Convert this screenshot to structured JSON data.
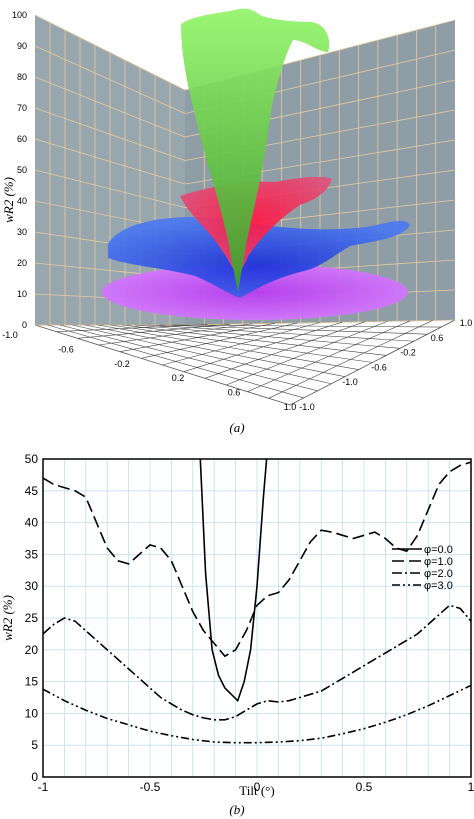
{
  "chart_data": [
    {
      "type": "surface3d",
      "panel_label": "(a)",
      "zlabel": "wR2 (%)",
      "zlim": [
        0,
        100
      ],
      "z_ticks": [
        "0",
        "10",
        "20",
        "30",
        "40",
        "50",
        "60",
        "70",
        "80",
        "90",
        "100"
      ],
      "x_ticks": [
        "-1.0",
        "-0.6",
        "-0.2",
        "0.2",
        "0.6",
        "1.0"
      ],
      "y_ticks": [
        "1.0",
        "0.6",
        "-0.2",
        "-0.6",
        "-1.0"
      ],
      "y_ticks_extra": [
        "-1.0"
      ],
      "surfaces": [
        {
          "name": "phi=0.0",
          "color": "#7ef04a",
          "min_z": 4,
          "max_z": 100
        },
        {
          "name": "phi=1.0",
          "color": "#ff2f6e",
          "min_z": 19,
          "max_z": 45
        },
        {
          "name": "phi=2.0",
          "color": "#2f4cf0",
          "min_z": 8,
          "max_z": 35
        },
        {
          "name": "phi=3.0",
          "color": "#c24cf5",
          "min_z": 5,
          "max_z": 15
        }
      ],
      "colors": {
        "wall": "#98a6ad",
        "grid": "#e8cba0",
        "floor": "#ffffff"
      }
    },
    {
      "type": "line",
      "panel_label": "(b)",
      "xlabel": "Tilt (°)",
      "ylabel": "wR2 (%)",
      "xlim": [
        -1,
        1
      ],
      "ylim": [
        0,
        50
      ],
      "x_ticks": [
        "-1",
        "-0.5",
        "0",
        "0.5",
        "1"
      ],
      "y_ticks": [
        "0",
        "5",
        "10",
        "15",
        "20",
        "25",
        "30",
        "35",
        "40",
        "45",
        "50"
      ],
      "legend_position": "right",
      "series": [
        {
          "name": "φ=0.0",
          "dash": "solid",
          "x": [
            -0.265,
            -0.24,
            -0.21,
            -0.18,
            -0.15,
            -0.12,
            -0.09,
            -0.06,
            -0.03,
            0.0,
            0.03,
            0.045
          ],
          "y": [
            50,
            32,
            20,
            16,
            14,
            13,
            12,
            15,
            20,
            30,
            44,
            50
          ]
        },
        {
          "name": "φ=1.0",
          "dash": "longdash",
          "x": [
            -1.0,
            -0.95,
            -0.9,
            -0.85,
            -0.8,
            -0.75,
            -0.7,
            -0.65,
            -0.6,
            -0.55,
            -0.5,
            -0.45,
            -0.4,
            -0.35,
            -0.3,
            -0.25,
            -0.2,
            -0.15,
            -0.1,
            -0.05,
            0.0,
            0.05,
            0.1,
            0.15,
            0.2,
            0.25,
            0.3,
            0.35,
            0.4,
            0.45,
            0.5,
            0.55,
            0.6,
            0.65,
            0.7,
            0.75,
            0.8,
            0.85,
            0.9,
            0.95,
            1.0
          ],
          "y": [
            47,
            46,
            45.5,
            45,
            44,
            40,
            36,
            34,
            33.5,
            35,
            36.5,
            36,
            34,
            30,
            26,
            23,
            21,
            19,
            20,
            23,
            27,
            28.5,
            29,
            31,
            34,
            37,
            38.8,
            38.5,
            38,
            37.5,
            38,
            38.5,
            37.5,
            36,
            35.5,
            38,
            42,
            46,
            48,
            49,
            49.5
          ]
        },
        {
          "name": "φ=2.0",
          "dash": "dashdot",
          "x": [
            -1.0,
            -0.95,
            -0.9,
            -0.85,
            -0.8,
            -0.75,
            -0.7,
            -0.65,
            -0.6,
            -0.55,
            -0.5,
            -0.45,
            -0.4,
            -0.35,
            -0.3,
            -0.25,
            -0.2,
            -0.15,
            -0.1,
            -0.05,
            0.0,
            0.05,
            0.1,
            0.15,
            0.2,
            0.25,
            0.3,
            0.35,
            0.4,
            0.45,
            0.5,
            0.55,
            0.6,
            0.65,
            0.7,
            0.75,
            0.8,
            0.85,
            0.9,
            0.95,
            1.0
          ],
          "y": [
            22.5,
            24,
            25,
            24.5,
            23,
            21.5,
            20,
            18.5,
            17,
            15.5,
            14,
            12.5,
            11.5,
            10.5,
            9.8,
            9.3,
            9.0,
            9.0,
            9.5,
            10.5,
            11.5,
            12,
            11.8,
            12,
            12.5,
            13,
            13.5,
            14.5,
            15.5,
            16.5,
            17.5,
            18.5,
            19.5,
            20.5,
            21.5,
            22.5,
            24,
            25.5,
            27,
            26.5,
            24.5
          ]
        },
        {
          "name": "φ=3.0",
          "dash": "dashdotdot",
          "x": [
            -1.0,
            -0.9,
            -0.8,
            -0.7,
            -0.6,
            -0.5,
            -0.4,
            -0.3,
            -0.2,
            -0.1,
            0.0,
            0.1,
            0.2,
            0.3,
            0.4,
            0.5,
            0.6,
            0.7,
            0.8,
            0.9,
            1.0
          ],
          "y": [
            13.8,
            12,
            10.5,
            9.2,
            8.2,
            7.2,
            6.5,
            5.9,
            5.5,
            5.4,
            5.4,
            5.5,
            5.7,
            6.1,
            6.8,
            7.6,
            8.6,
            9.8,
            11.2,
            12.8,
            14.4
          ]
        }
      ],
      "colors": {
        "grid": "#bfe0ec",
        "line": "#000000"
      }
    }
  ]
}
